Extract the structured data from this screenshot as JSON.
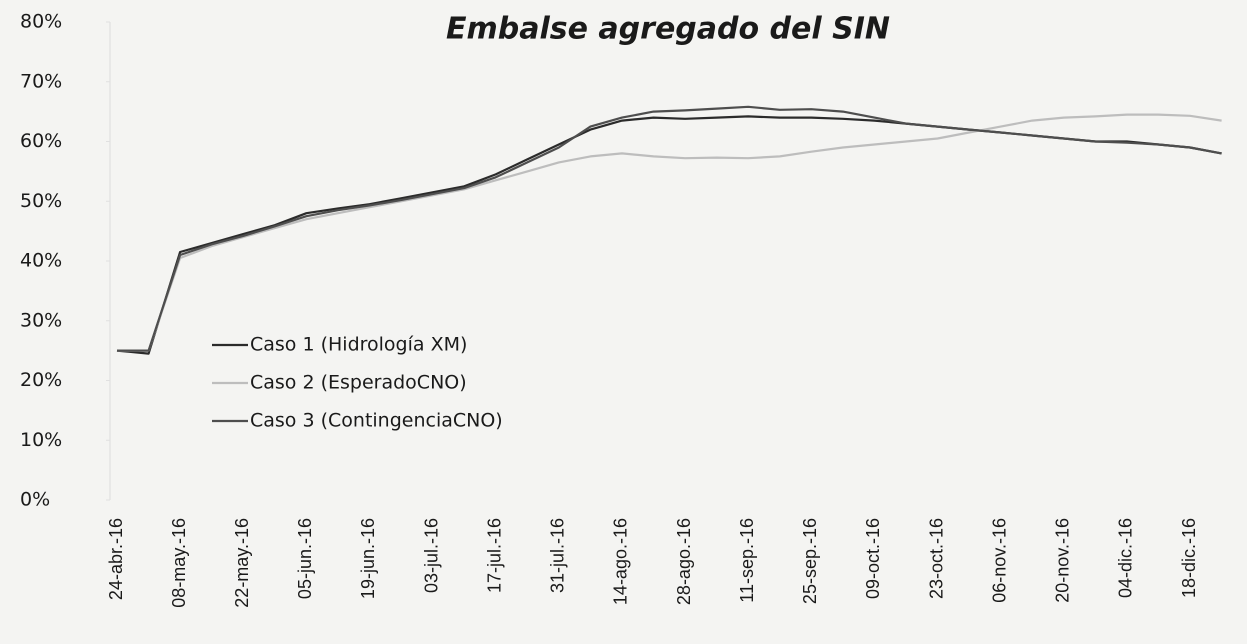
{
  "chart_data": {
    "type": "line",
    "title": "Embalse agregado del SIN",
    "categories": [
      "24-abr.-16",
      null,
      "08-may.-16",
      null,
      "22-may.-16",
      null,
      "05-jun.-16",
      null,
      "19-jun.-16",
      null,
      "03-jul.-16",
      null,
      "17-jul.-16",
      null,
      "31-jul.-16",
      null,
      "14-ago.-16",
      null,
      "28-ago.-16",
      null,
      "11-sep.-16",
      null,
      "25-sep.-16",
      null,
      "09-oct.-16",
      null,
      "23-oct.-16",
      null,
      "06-nov.-16",
      null,
      "20-nov.-16",
      null,
      "04-dic.-16",
      null,
      "18-dic.-16",
      null
    ],
    "series": [
      {
        "name": "Caso 1 (Hidrología XM)",
        "color": "#2b2b2b",
        "values": [
          25,
          24.5,
          41.5,
          43,
          44.5,
          46,
          48,
          48.8,
          49.5,
          50.5,
          51.5,
          52.5,
          54.5,
          57,
          59.5,
          62,
          63.5,
          64,
          63.8,
          64,
          64.2,
          64,
          64,
          63.8,
          63.5,
          63,
          62.5,
          62,
          61.5,
          61,
          60.5,
          60,
          60,
          59.5,
          59,
          58
        ]
      },
      {
        "name": "Caso 2 (EsperadoCNO)",
        "color": "#bdbdbd",
        "values": [
          25,
          25,
          40.5,
          42.5,
          44,
          45.5,
          47,
          48,
          49,
          50,
          51,
          52,
          53.5,
          55,
          56.5,
          57.5,
          58,
          57.5,
          57.2,
          57.3,
          57.2,
          57.5,
          58.3,
          59,
          59.5,
          60,
          60.5,
          61.5,
          62.5,
          63.5,
          64,
          64.2,
          64.5,
          64.5,
          64.3,
          63.5
        ]
      },
      {
        "name": "Caso 3 (ContingenciaCNO)",
        "color": "#4e4e4e",
        "values": [
          25,
          25,
          41,
          42.8,
          44.2,
          45.8,
          47.5,
          48.5,
          49.3,
          50.2,
          51.2,
          52.2,
          54,
          56.5,
          59,
          62.5,
          64,
          65,
          65.2,
          65.5,
          65.8,
          65.3,
          65.4,
          65,
          64,
          63,
          62.5,
          62,
          61.5,
          61,
          60.5,
          60,
          59.8,
          59.5,
          59,
          58
        ]
      }
    ],
    "ylim": [
      0,
      80
    ],
    "yticks": [
      {
        "value": 0,
        "label": "0%"
      },
      {
        "value": 10,
        "label": "10%"
      },
      {
        "value": 20,
        "label": "20%"
      },
      {
        "value": 30,
        "label": "30%"
      },
      {
        "value": 40,
        "label": "40%"
      },
      {
        "value": 50,
        "label": "50%"
      },
      {
        "value": 60,
        "label": "60%"
      },
      {
        "value": 70,
        "label": "70%"
      },
      {
        "value": 80,
        "label": "80%"
      }
    ]
  }
}
